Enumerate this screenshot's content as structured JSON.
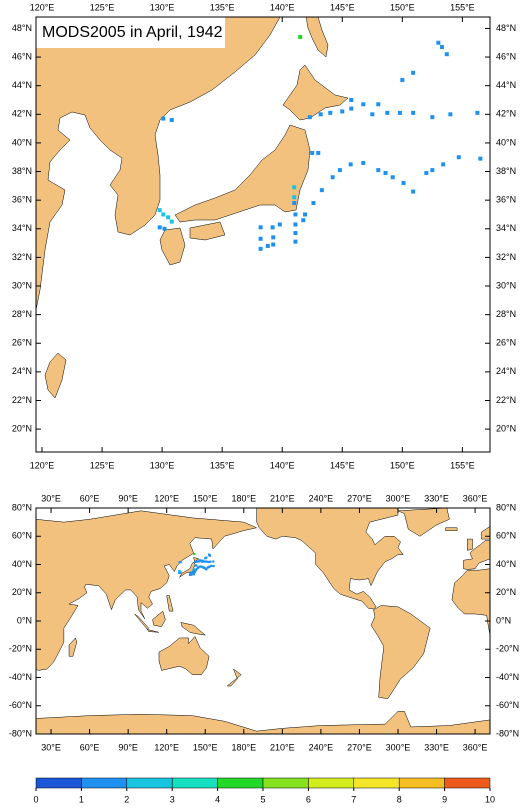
{
  "top_map": {
    "type": "map",
    "title": "MODS2005 in April, 1942",
    "xlim": [
      119.5,
      157.3
    ],
    "ylim": [
      18.4,
      48.8
    ],
    "xticks": [
      {
        "value": 120,
        "label": "120°E"
      },
      {
        "value": 125,
        "label": "125°E"
      },
      {
        "value": 130,
        "label": "130°E"
      },
      {
        "value": 135,
        "label": "135°E"
      },
      {
        "value": 140,
        "label": "140°E"
      },
      {
        "value": 145,
        "label": "145°E"
      },
      {
        "value": 150,
        "label": "150°E"
      },
      {
        "value": 155,
        "label": "155°E"
      }
    ],
    "yticks": [
      {
        "value": 20,
        "label": "20°N"
      },
      {
        "value": 22,
        "label": "22°N"
      },
      {
        "value": 24,
        "label": "24°N"
      },
      {
        "value": 26,
        "label": "26°N"
      },
      {
        "value": 28,
        "label": "28°N"
      },
      {
        "value": 30,
        "label": "30°N"
      },
      {
        "value": 32,
        "label": "32°N"
      },
      {
        "value": 34,
        "label": "34°N"
      },
      {
        "value": 36,
        "label": "36°N"
      },
      {
        "value": 38,
        "label": "38°N"
      },
      {
        "value": 40,
        "label": "40°N"
      },
      {
        "value": 42,
        "label": "42°N"
      },
      {
        "value": 44,
        "label": "44°N"
      },
      {
        "value": 46,
        "label": "46°N"
      },
      {
        "value": 48,
        "label": "48°N"
      }
    ]
  },
  "world_map": {
    "type": "map",
    "xlim": [
      18.3,
      371.6
    ],
    "ylim": [
      -80,
      80
    ],
    "xticks": [
      {
        "value": 30,
        "label": "30°E"
      },
      {
        "value": 60,
        "label": "60°E"
      },
      {
        "value": 90,
        "label": "90°E"
      },
      {
        "value": 120,
        "label": "120°E"
      },
      {
        "value": 150,
        "label": "150°E"
      },
      {
        "value": 180,
        "label": "180°E"
      },
      {
        "value": 210,
        "label": "210°E"
      },
      {
        "value": 240,
        "label": "240°E"
      },
      {
        "value": 270,
        "label": "270°E"
      },
      {
        "value": 300,
        "label": "300°E"
      },
      {
        "value": 330,
        "label": "330°E"
      },
      {
        "value": 360,
        "label": "360°E"
      }
    ],
    "yticks": [
      {
        "value": -80,
        "label": "-80°N"
      },
      {
        "value": -60,
        "label": "-60°N"
      },
      {
        "value": -40,
        "label": "-40°N"
      },
      {
        "value": -20,
        "label": "-20°N"
      },
      {
        "value": 0,
        "label": "0°N"
      },
      {
        "value": 20,
        "label": "20°N"
      },
      {
        "value": 40,
        "label": "40°N"
      },
      {
        "value": 60,
        "label": "60°N"
      },
      {
        "value": 80,
        "label": "80°N"
      }
    ]
  },
  "observations": {
    "lon": [
      141.5,
      130.1,
      130.8,
      142.3,
      143.2,
      144.0,
      145.0,
      145.75,
      145.75,
      146.75,
      148.0,
      147.5,
      148.75,
      149.8,
      150.9,
      152.5,
      154.0,
      156.25,
      150.0,
      150.9,
      153.0,
      153.3,
      153.7,
      142.5,
      143.0,
      145.7,
      146.75,
      148.0,
      148.6,
      149.2,
      150.1,
      150.9,
      152.0,
      152.5,
      153.4,
      154.7,
      156.5,
      144.8,
      144.2,
      143.3,
      142.6,
      141.9,
      141.0,
      141.0,
      141.0,
      141.1,
      141.75,
      141.1,
      141.1,
      141.1,
      139.8,
      139.2,
      138.2,
      138.2,
      138.2,
      138.8,
      139.25,
      139.25,
      129.8,
      130.1,
      130.5,
      130.8,
      129.8,
      130.2
    ],
    "lat": [
      47.4,
      41.7,
      41.6,
      41.8,
      42.0,
      42.1,
      42.2,
      43.0,
      42.4,
      42.7,
      42.7,
      42.0,
      42.1,
      42.1,
      42.1,
      41.8,
      42.0,
      42.1,
      44.4,
      44.9,
      47.0,
      46.7,
      46.2,
      39.3,
      39.3,
      38.5,
      38.6,
      38.1,
      37.9,
      37.6,
      37.2,
      36.6,
      37.9,
      38.1,
      38.5,
      39.0,
      38.9,
      38.1,
      37.6,
      36.7,
      35.8,
      35.0,
      36.9,
      36.2,
      35.8,
      35.0,
      34.6,
      34.3,
      33.7,
      33.1,
      34.3,
      34.1,
      34.1,
      33.3,
      32.6,
      32.8,
      33.4,
      32.9,
      35.3,
      35.0,
      34.8,
      34.5,
      34.1,
      34.0
    ],
    "values": [
      4.5,
      1.5,
      1.5,
      1.5,
      1.5,
      1.5,
      1.5,
      1.5,
      1.5,
      1.5,
      1.5,
      1.5,
      1.5,
      1.5,
      1.5,
      1.5,
      1.5,
      1.5,
      1.5,
      1.5,
      1.5,
      1.5,
      1.5,
      1.5,
      1.5,
      1.5,
      1.5,
      1.5,
      1.5,
      1.5,
      1.5,
      1.5,
      1.5,
      1.5,
      1.5,
      1.5,
      1.5,
      1.5,
      1.5,
      1.5,
      1.5,
      1.5,
      2.5,
      2.5,
      1.5,
      1.5,
      1.5,
      1.5,
      1.5,
      1.5,
      1.5,
      1.5,
      1.5,
      1.5,
      1.5,
      1.5,
      1.5,
      1.5,
      2.5,
      2.5,
      2.5,
      2.5,
      1.5,
      1.5
    ]
  },
  "colorbar": {
    "ticks": [
      0,
      1,
      2,
      3,
      4,
      5,
      6,
      7,
      8,
      9,
      10
    ],
    "colors": [
      "#1a56d6",
      "#1e90f0",
      "#19c4e0",
      "#16e0c0",
      "#22d828",
      "#86e21e",
      "#d2ec1e",
      "#f6e62a",
      "#f6be22",
      "#ee5a1c"
    ]
  }
}
